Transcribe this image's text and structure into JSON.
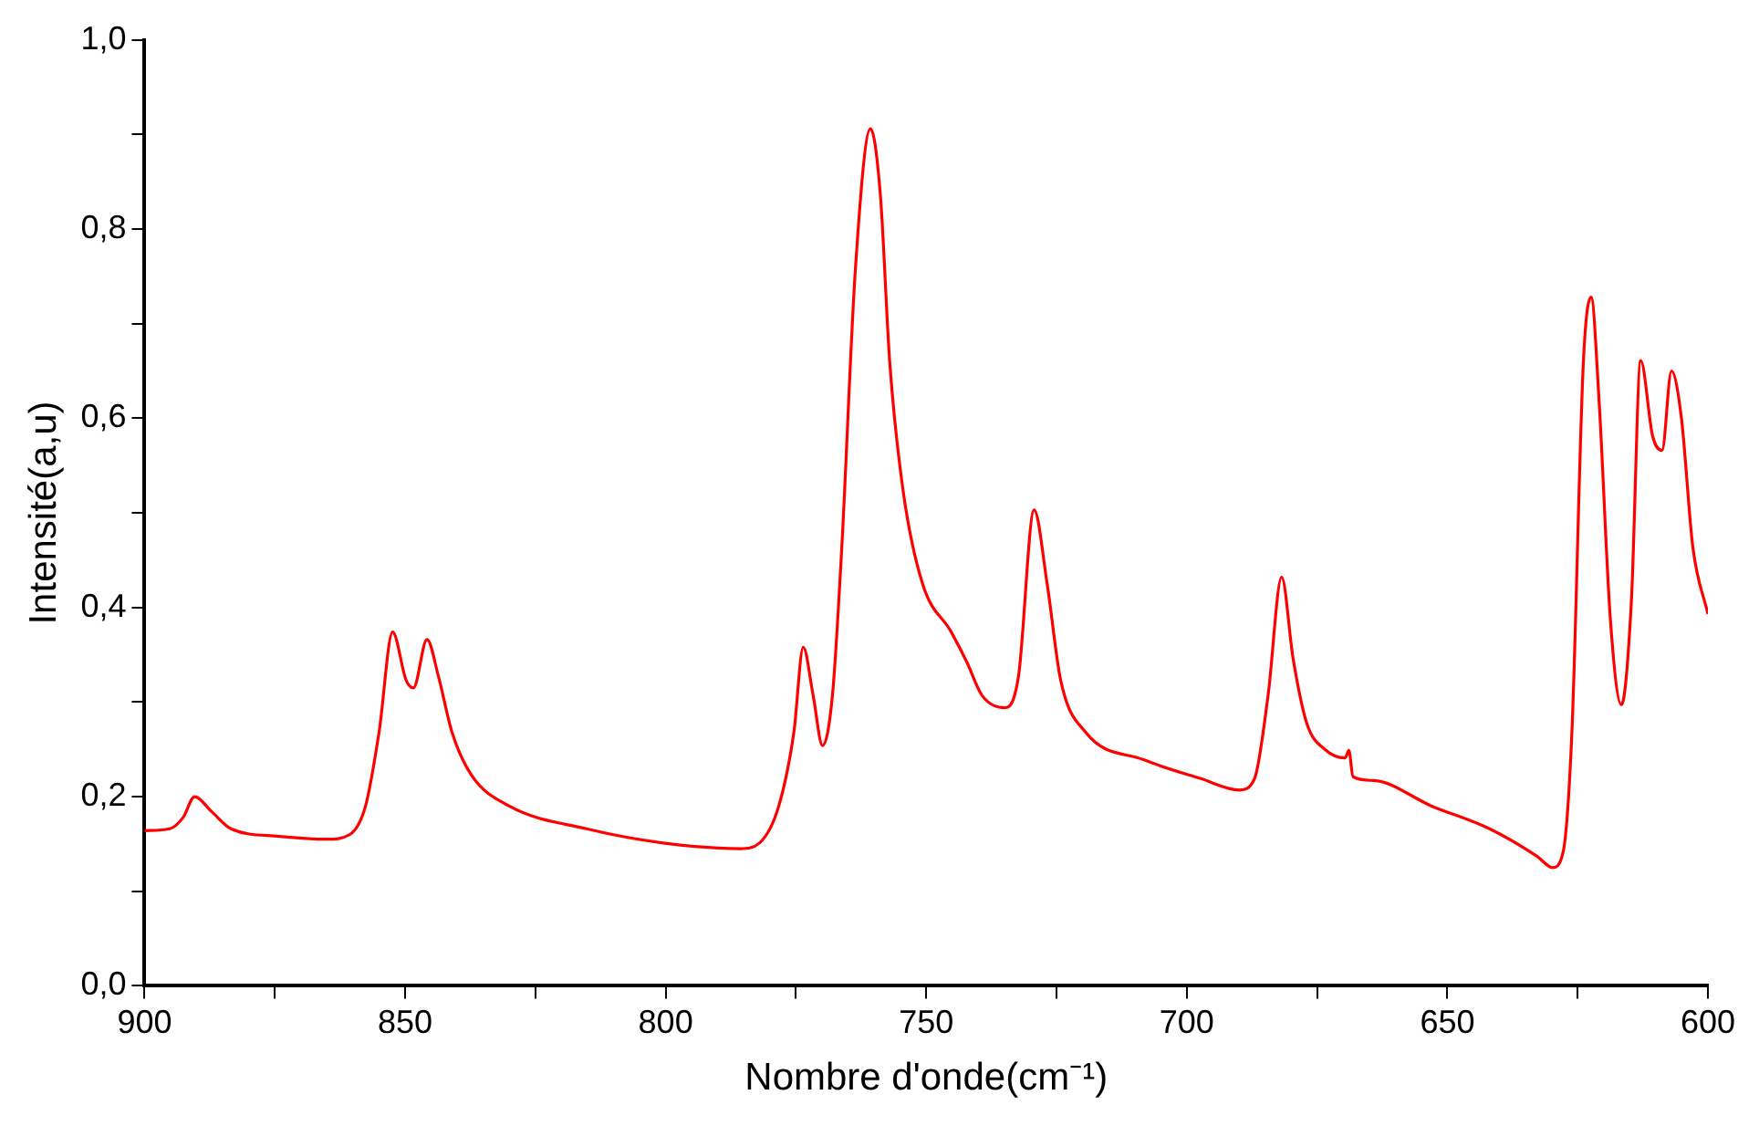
{
  "chart_data": {
    "type": "line",
    "xlabel": "Nombre d'onde(cm⁻¹)",
    "ylabel": "Intensité(a,u)",
    "xlim": [
      900,
      600
    ],
    "ylim": [
      0,
      1
    ],
    "xticks": [
      900,
      {
        "value": 875,
        "label": null
      },
      850,
      {
        "value": 825,
        "label": null
      },
      800,
      {
        "value": 775,
        "label": null
      },
      750,
      {
        "value": 725,
        "label": null
      },
      700,
      {
        "value": 675,
        "label": null
      },
      650,
      {
        "value": 625,
        "label": null
      },
      600
    ],
    "yticks": [
      {
        "value": 0,
        "label": "0,0"
      },
      {
        "value": 0.1,
        "label": null
      },
      {
        "value": 0.2,
        "label": "0,2"
      },
      {
        "value": 0.3,
        "label": null
      },
      {
        "value": 0.4,
        "label": "0,4"
      },
      {
        "value": 0.5,
        "label": null
      },
      {
        "value": 0.6,
        "label": "0,6"
      },
      {
        "value": 0.7,
        "label": null
      },
      {
        "value": 0.8,
        "label": "0,8"
      },
      {
        "value": 0.9,
        "label": null
      },
      {
        "value": 1,
        "label": "1,0"
      }
    ],
    "grid": false,
    "legend": false,
    "marker": "none",
    "line_style": "solid",
    "series": [
      {
        "color": "#ff0000",
        "x": [
          900,
          895.2,
          892.6,
          890.4,
          887.1,
          883.4,
          874.2,
          865.0,
          860.6,
          857.6,
          855.0,
          852.4,
          849.8,
          848.4,
          845.8,
          843.6,
          841.0,
          837.3,
          830.0,
          815.2,
          800.5,
          785.7,
          782.0,
          778.3,
          775.4,
          773.6,
          771.7,
          769.9,
          768.0,
          766.2,
          763.6,
          760.7,
          758.8,
          757.0,
          754.4,
          750.7,
          745.2,
          742.2,
          739.3,
          734.9,
          732.3,
          729.3,
          726.8,
          724.2,
          719.4,
          708.3,
          697.3,
          689.9,
          687.0,
          684.4,
          681.8,
          679.6,
          677.0,
          673.3,
          669.6,
          668.9,
          668.1,
          664.1,
          653.0,
          641.9,
          632.8,
          629.8,
          627.8,
          626.1,
          623.9,
          622.4,
          620.9,
          618.7,
          616.6,
          614.7,
          612.9,
          610.6,
          608.8,
          607.0,
          605.1,
          602.9,
          600
        ],
        "values": [
          0.164,
          0.166,
          0.178,
          0.2,
          0.184,
          0.166,
          0.158,
          0.155,
          0.16,
          0.19,
          0.268,
          0.374,
          0.323,
          0.315,
          0.366,
          0.327,
          0.268,
          0.223,
          0.19,
          0.166,
          0.151,
          0.145,
          0.151,
          0.19,
          0.268,
          0.358,
          0.307,
          0.254,
          0.307,
          0.464,
          0.757,
          0.906,
          0.836,
          0.659,
          0.522,
          0.425,
          0.374,
          0.342,
          0.307,
          0.294,
          0.327,
          0.503,
          0.425,
          0.323,
          0.268,
          0.239,
          0.219,
          0.207,
          0.219,
          0.307,
          0.432,
          0.346,
          0.278,
          0.249,
          0.241,
          0.249,
          0.221,
          0.217,
          0.19,
          0.166,
          0.137,
          0.125,
          0.141,
          0.268,
          0.659,
          0.728,
          0.62,
          0.386,
          0.297,
          0.405,
          0.661,
          0.581,
          0.566,
          0.65,
          0.601,
          0.464,
          0.393
        ]
      }
    ]
  }
}
